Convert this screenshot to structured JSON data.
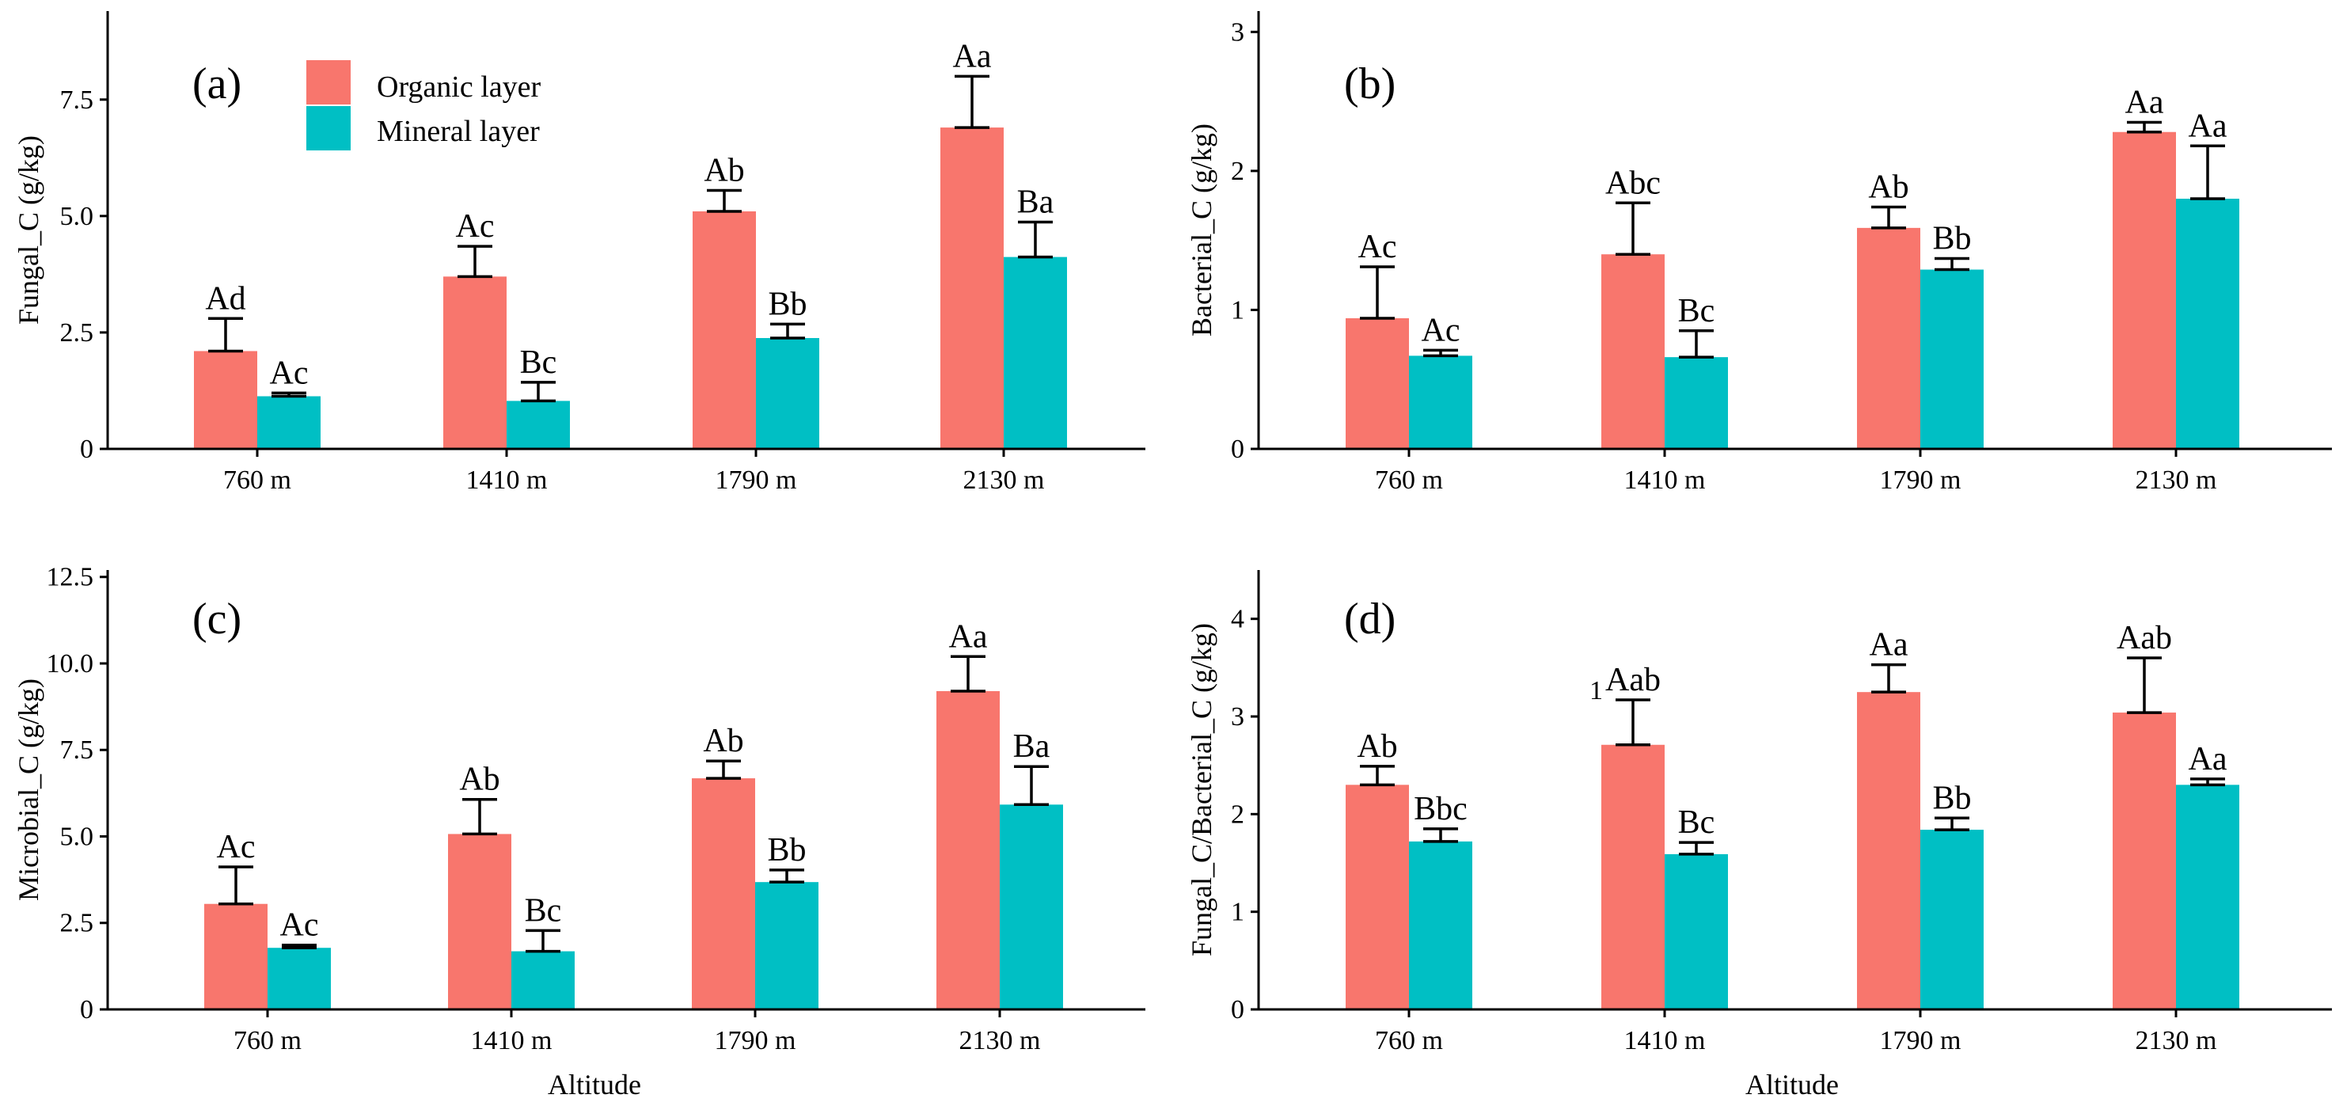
{
  "figure": {
    "xlabel_shared": "Altitude"
  },
  "legend": {
    "entries": [
      {
        "name": "Organic layer",
        "color": "#F8766D"
      },
      {
        "name": "Mineral layer",
        "color": "#00BFC4"
      }
    ],
    "placement": "top-left of panel (a)"
  },
  "chart_data": [
    {
      "panel": "(a)",
      "type": "bar",
      "categories": [
        "760 m",
        "1410 m",
        "1790 m",
        "2130 m"
      ],
      "ylabel": "Fungal_C (g/kg)",
      "xlabel": "",
      "ylim": [
        0,
        9.4
      ],
      "yticks": [
        0,
        2.5,
        5.0,
        7.5
      ],
      "ytick_labels": [
        "0",
        "2.5",
        "5.0",
        "7.5"
      ],
      "series": [
        {
          "name": "Organic layer",
          "color": "#F8766D",
          "values": [
            2.1,
            3.7,
            5.1,
            6.9
          ],
          "errors": [
            0.7,
            0.65,
            0.45,
            1.1
          ],
          "labels": [
            "Ad",
            "Ac",
            "Ab",
            "Aa"
          ]
        },
        {
          "name": "Mineral layer",
          "color": "#00BFC4",
          "values": [
            1.13,
            1.03,
            2.38,
            4.12
          ],
          "errors": [
            0.07,
            0.4,
            0.3,
            0.75
          ],
          "labels": [
            "Ac",
            "Bc",
            "Bb",
            "Ba"
          ]
        }
      ]
    },
    {
      "panel": "(b)",
      "type": "bar",
      "categories": [
        "760 m",
        "1410 m",
        "1790 m",
        "2130 m"
      ],
      "ylabel": "Bacterial_C (g/kg)",
      "xlabel": "",
      "ylim": [
        0,
        3.15
      ],
      "yticks": [
        0,
        1,
        2,
        3
      ],
      "ytick_labels": [
        "0",
        "1",
        "2",
        "3"
      ],
      "series": [
        {
          "name": "Organic layer",
          "color": "#F8766D",
          "values": [
            0.94,
            1.4,
            1.59,
            2.28
          ],
          "errors": [
            0.37,
            0.37,
            0.15,
            0.07
          ],
          "labels": [
            "Ac",
            "Abc",
            "Ab",
            "Aa"
          ]
        },
        {
          "name": "Mineral layer",
          "color": "#00BFC4",
          "values": [
            0.67,
            0.66,
            1.29,
            1.8
          ],
          "errors": [
            0.04,
            0.19,
            0.08,
            0.38
          ],
          "labels": [
            "Ac",
            "Bc",
            "Bb",
            "Aa"
          ]
        }
      ]
    },
    {
      "panel": "(c)",
      "type": "bar",
      "categories": [
        "760 m",
        "1410 m",
        "1790 m",
        "2130 m"
      ],
      "ylabel": "Microbial_C (g/kg)",
      "xlabel": "Altitude",
      "ylim": [
        0,
        12.7
      ],
      "yticks": [
        0,
        2.5,
        5.0,
        7.5,
        10.0,
        12.5
      ],
      "ytick_labels": [
        "0",
        "2.5",
        "5.0",
        "7.5",
        "10.0",
        "12.5"
      ],
      "series": [
        {
          "name": "Organic layer",
          "color": "#F8766D",
          "values": [
            3.05,
            5.07,
            6.68,
            9.2
          ],
          "errors": [
            1.07,
            1.0,
            0.5,
            1.0
          ],
          "labels": [
            "Ac",
            "Ab",
            "Ab",
            "Aa"
          ]
        },
        {
          "name": "Mineral layer",
          "color": "#00BFC4",
          "values": [
            1.78,
            1.68,
            3.68,
            5.92
          ],
          "errors": [
            0.08,
            0.6,
            0.35,
            1.1
          ],
          "labels": [
            "Ac",
            "Bc",
            "Bb",
            "Ba"
          ]
        }
      ]
    },
    {
      "panel": "(d)",
      "type": "bar",
      "categories": [
        "760 m",
        "1410 m",
        "1790 m",
        "2130 m"
      ],
      "ylabel": "Fungal_C/Bacterial_C (g/kg)",
      "xlabel": "Altitude",
      "ylim": [
        0,
        4.5
      ],
      "yticks": [
        0,
        1,
        2,
        3,
        4
      ],
      "ytick_labels": [
        "0",
        "1",
        "2",
        "3",
        "4"
      ],
      "series": [
        {
          "name": "Organic layer",
          "color": "#F8766D",
          "values": [
            2.3,
            2.71,
            3.25,
            3.04
          ],
          "errors": [
            0.19,
            0.46,
            0.28,
            0.56
          ],
          "labels": [
            "Ab",
            "Aab",
            "Aa",
            "Aab"
          ]
        },
        {
          "name": "Mineral layer",
          "color": "#00BFC4",
          "values": [
            1.72,
            1.59,
            1.84,
            2.3
          ],
          "errors": [
            0.13,
            0.12,
            0.12,
            0.06
          ],
          "labels": [
            "Bbc",
            "Bc",
            "Bb",
            "Aa"
          ]
        }
      ],
      "stray_marks": [
        "1"
      ]
    }
  ]
}
